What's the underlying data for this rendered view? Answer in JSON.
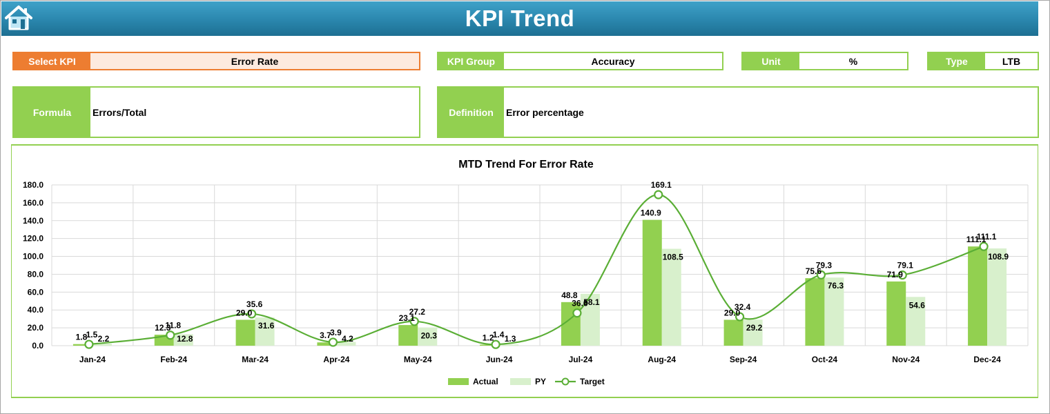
{
  "header": {
    "title": "KPI Trend"
  },
  "filters": {
    "select_kpi": {
      "label": "Select KPI",
      "value": "Error Rate"
    },
    "kpi_group": {
      "label": "KPI Group",
      "value": "Accuracy"
    },
    "unit": {
      "label": "Unit",
      "value": "%"
    },
    "type": {
      "label": "Type",
      "value": "LTB"
    }
  },
  "details": {
    "formula": {
      "label": "Formula",
      "value": "Errors/Total"
    },
    "definition": {
      "label": "Definition",
      "value": "Error percentage"
    }
  },
  "colors": {
    "actual": "#92d050",
    "py": "#d8f0cc",
    "target": "#5aae35",
    "accent": "#ed7d31",
    "header": "#2a86ad"
  },
  "chart_data": {
    "type": "bar",
    "title": "MTD Trend For Error Rate",
    "categories": [
      "Jan-24",
      "Feb-24",
      "Mar-24",
      "Apr-24",
      "May-24",
      "Jun-24",
      "Jul-24",
      "Aug-24",
      "Sep-24",
      "Oct-24",
      "Nov-24",
      "Dec-24"
    ],
    "series": [
      {
        "name": "Actual",
        "kind": "bar",
        "values": [
          1.8,
          12.3,
          29.0,
          3.7,
          23.1,
          1.2,
          48.8,
          140.9,
          29.0,
          75.6,
          71.9,
          111.1
        ]
      },
      {
        "name": "PY",
        "kind": "bar",
        "values": [
          2.2,
          12.8,
          31.6,
          4.2,
          20.3,
          1.3,
          58.1,
          108.5,
          29.2,
          76.3,
          54.6,
          108.9
        ]
      },
      {
        "name": "Target",
        "kind": "line",
        "values": [
          1.5,
          11.8,
          35.6,
          3.9,
          27.2,
          1.4,
          36.6,
          169.1,
          32.4,
          79.3,
          79.1,
          111.1
        ]
      }
    ],
    "ylim": [
      0,
      180
    ],
    "yticks": [
      "0.0",
      "20.0",
      "40.0",
      "60.0",
      "80.0",
      "100.0",
      "120.0",
      "140.0",
      "160.0",
      "180.0"
    ],
    "grid": true,
    "legend": "bottom"
  }
}
